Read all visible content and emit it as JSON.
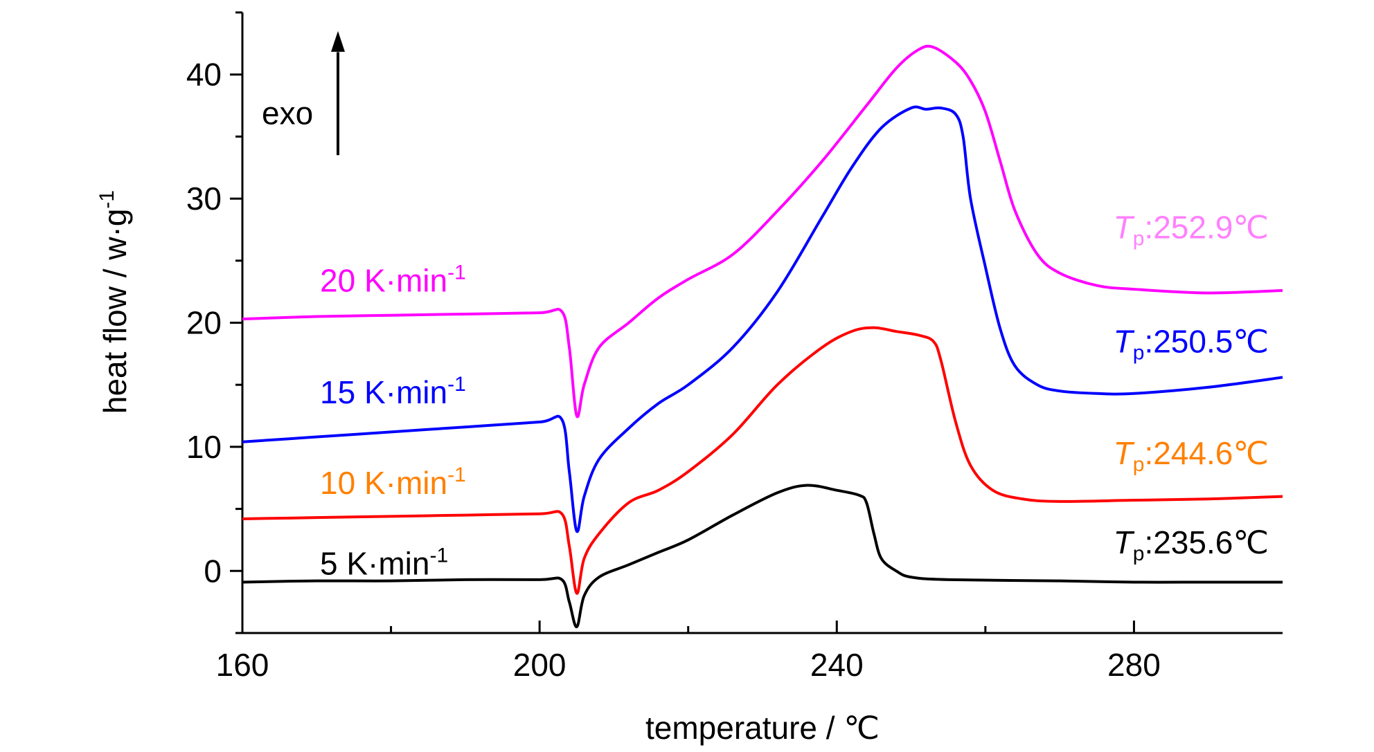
{
  "chart_data": {
    "type": "line",
    "xlabel": "temperature / ℃",
    "ylabel_main": "heat flow / w·g",
    "ylabel_sup": "-1",
    "xlim": [
      160,
      300
    ],
    "ylim": [
      -5,
      45
    ],
    "xticks": [
      160,
      200,
      240,
      280
    ],
    "yticks": [
      0,
      10,
      20,
      30,
      40
    ],
    "grid": false,
    "direction_label": "exo",
    "series": [
      {
        "name": "20 K·min-1",
        "label_main": "20 K·min",
        "label_sup": "-1",
        "color": "#ff00ff",
        "label_color": "#ff00ff",
        "peak_sym": "T",
        "peak_sub": "p",
        "peak_text": ":252.9℃",
        "peak_color": "#ff80ff",
        "points": [
          [
            160,
            20.3
          ],
          [
            170,
            20.5
          ],
          [
            180,
            20.6
          ],
          [
            190,
            20.7
          ],
          [
            200,
            20.8
          ],
          [
            203,
            20.9
          ],
          [
            204,
            18
          ],
          [
            205,
            12.5
          ],
          [
            206,
            15
          ],
          [
            208,
            18
          ],
          [
            212,
            20
          ],
          [
            216,
            22
          ],
          [
            220,
            23.5
          ],
          [
            226,
            25.5
          ],
          [
            232,
            29
          ],
          [
            238,
            33
          ],
          [
            244,
            37.5
          ],
          [
            248,
            40.5
          ],
          [
            251,
            42
          ],
          [
            253,
            42.2
          ],
          [
            256,
            41
          ],
          [
            258,
            39.5
          ],
          [
            260,
            37
          ],
          [
            262,
            33
          ],
          [
            264,
            29
          ],
          [
            267,
            25.5
          ],
          [
            270,
            24
          ],
          [
            275,
            23
          ],
          [
            280,
            22.7
          ],
          [
            290,
            22.4
          ],
          [
            300,
            22.6
          ]
        ]
      },
      {
        "name": "15 K·min-1",
        "label_main": "15 K·min",
        "label_sup": "-1",
        "color": "#0000ff",
        "label_color": "#0000ff",
        "peak_sym": "T",
        "peak_sub": "p",
        "peak_text": ":250.5℃",
        "peak_color": "#0000ff",
        "points": [
          [
            160,
            10.4
          ],
          [
            170,
            10.8
          ],
          [
            180,
            11.2
          ],
          [
            190,
            11.6
          ],
          [
            200,
            12
          ],
          [
            203,
            12.2
          ],
          [
            204,
            8
          ],
          [
            205,
            3.2
          ],
          [
            206,
            6
          ],
          [
            208,
            9
          ],
          [
            212,
            11.5
          ],
          [
            216,
            13.5
          ],
          [
            220,
            15
          ],
          [
            226,
            18
          ],
          [
            232,
            22.5
          ],
          [
            238,
            28.5
          ],
          [
            242,
            32.5
          ],
          [
            246,
            35.7
          ],
          [
            250,
            37.3
          ],
          [
            252,
            37.2
          ],
          [
            254,
            37.3
          ],
          [
            256,
            36.8
          ],
          [
            257,
            35
          ],
          [
            258,
            30
          ],
          [
            260,
            24.5
          ],
          [
            262,
            19.5
          ],
          [
            264,
            16.5
          ],
          [
            267,
            15
          ],
          [
            270,
            14.5
          ],
          [
            275,
            14.3
          ],
          [
            280,
            14.3
          ],
          [
            290,
            14.8
          ],
          [
            300,
            15.6
          ]
        ]
      },
      {
        "name": "10 K·min-1",
        "label_main": "10 K·min",
        "label_sup": "-1",
        "color": "#ff0000",
        "label_color": "#ff8000",
        "peak_sym": "T",
        "peak_sub": "p",
        "peak_text": ":244.6℃",
        "peak_color": "#ff8000",
        "points": [
          [
            160,
            4.2
          ],
          [
            170,
            4.3
          ],
          [
            180,
            4.4
          ],
          [
            190,
            4.5
          ],
          [
            200,
            4.6
          ],
          [
            203,
            4.6
          ],
          [
            204,
            2
          ],
          [
            205,
            -1.8
          ],
          [
            206,
            1
          ],
          [
            208,
            3
          ],
          [
            212,
            5.5
          ],
          [
            216,
            6.5
          ],
          [
            220,
            8
          ],
          [
            226,
            11
          ],
          [
            232,
            15
          ],
          [
            238,
            18
          ],
          [
            242,
            19.3
          ],
          [
            245,
            19.6
          ],
          [
            248,
            19.3
          ],
          [
            251,
            19
          ],
          [
            253,
            18.5
          ],
          [
            254,
            17
          ],
          [
            256,
            12
          ],
          [
            258,
            8.5
          ],
          [
            261,
            6.5
          ],
          [
            265,
            5.8
          ],
          [
            270,
            5.6
          ],
          [
            280,
            5.7
          ],
          [
            290,
            5.8
          ],
          [
            300,
            6
          ]
        ]
      },
      {
        "name": "5 K·min-1",
        "label_main": "5 K·min",
        "label_sup": "-1",
        "color": "#000000",
        "label_color": "#000000",
        "peak_sym": "T",
        "peak_sub": "p",
        "peak_text": ":235.6℃",
        "peak_color": "#000000",
        "points": [
          [
            160,
            -0.9
          ],
          [
            170,
            -0.8
          ],
          [
            180,
            -0.8
          ],
          [
            190,
            -0.7
          ],
          [
            200,
            -0.7
          ],
          [
            203,
            -0.7
          ],
          [
            204,
            -2.5
          ],
          [
            205,
            -4.5
          ],
          [
            206,
            -2
          ],
          [
            208,
            -0.5
          ],
          [
            212,
            0.5
          ],
          [
            216,
            1.5
          ],
          [
            220,
            2.5
          ],
          [
            226,
            4.5
          ],
          [
            232,
            6.3
          ],
          [
            236,
            6.9
          ],
          [
            240,
            6.5
          ],
          [
            243,
            6.1
          ],
          [
            244,
            5.5
          ],
          [
            245,
            3
          ],
          [
            246,
            1
          ],
          [
            248,
            0
          ],
          [
            250,
            -0.5
          ],
          [
            255,
            -0.7
          ],
          [
            270,
            -0.8
          ],
          [
            280,
            -0.9
          ],
          [
            290,
            -0.9
          ],
          [
            300,
            -0.9
          ]
        ]
      }
    ]
  }
}
